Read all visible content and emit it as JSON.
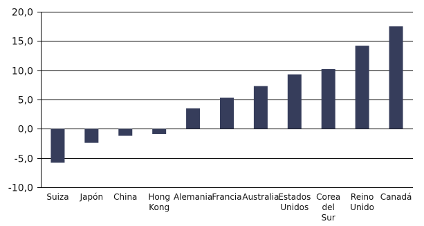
{
  "chart_data": {
    "type": "bar",
    "title": "",
    "xlabel": "",
    "ylabel": "",
    "ylim": [
      -10,
      20
    ],
    "yticks": [
      20,
      15,
      10,
      5,
      0,
      -5,
      -10
    ],
    "ytick_labels": [
      "20,0",
      "15,0",
      "10,0",
      "5,0",
      "0,0",
      "-5,0",
      "-10,0"
    ],
    "categories": [
      "Suiza",
      "Japón",
      "China",
      "Hong Kong",
      "Alemania",
      "Francia",
      "Australia",
      "Estados Unidos",
      "Corea del Sur",
      "Reino Unido",
      "Canadá"
    ],
    "category_label_lines": [
      [
        "Suiza"
      ],
      [
        "Japón"
      ],
      [
        "China"
      ],
      [
        "Hong",
        "Kong"
      ],
      [
        "Alemania"
      ],
      [
        "Francia"
      ],
      [
        "Australia"
      ],
      [
        "Estados",
        "Unidos"
      ],
      [
        "Corea",
        "del",
        "Sur"
      ],
      [
        "Reino",
        "Unido"
      ],
      [
        "Canadá"
      ]
    ],
    "values": [
      -5.8,
      -2.4,
      -1.2,
      -0.9,
      3.5,
      5.3,
      7.3,
      9.3,
      10.2,
      14.2,
      17.5
    ],
    "grid": true,
    "legend": false,
    "bar_color": "#363d5b"
  }
}
